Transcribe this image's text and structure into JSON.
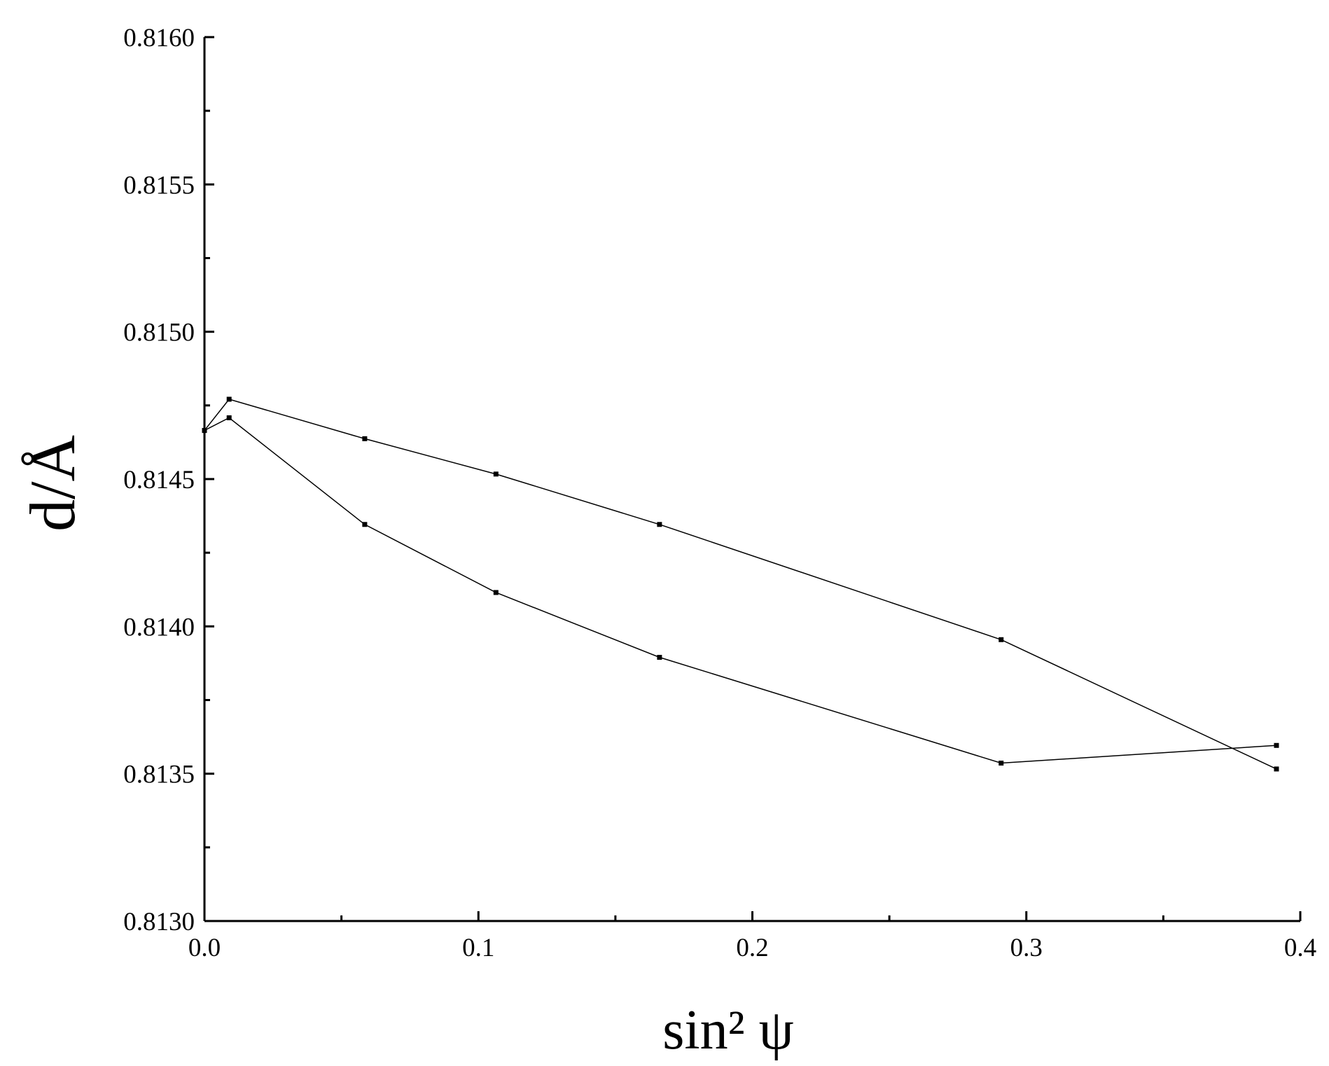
{
  "chart_data": {
    "type": "line",
    "x_label": "sin² ψ",
    "y_label": "d/Å",
    "series": [
      {
        "color": "#000000",
        "x": [
          0,
          0.009,
          0.0585,
          0.1064,
          0.1661,
          0.2908,
          0.3913
        ],
        "values": [
          0.814665,
          0.814771,
          0.814637,
          0.814517,
          0.814346,
          0.813955,
          0.813516
        ]
      },
      {
        "color": "#000000",
        "x": [
          0,
          0.009,
          0.0585,
          0.1064,
          0.1661,
          0.2908,
          0.3913
        ],
        "values": [
          0.814665,
          0.814708,
          0.814346,
          0.814115,
          0.813895,
          0.813536,
          0.813596
        ]
      }
    ],
    "xlim": [
      0,
      0.4
    ],
    "xticks": [
      {
        "value": 0,
        "label": "0.0"
      },
      0.1,
      0.2,
      0.3,
      0.4
    ],
    "xminorticks": [
      0.05,
      0.15,
      0.25,
      0.35
    ],
    "ylim": [
      0.813,
      0.816
    ],
    "yticks": [
      {
        "value": 0.813,
        "label": "0.8130"
      },
      {
        "value": 0.8135,
        "label": "0.8135"
      },
      {
        "value": 0.814,
        "label": "0.8140"
      },
      {
        "value": 0.8145,
        "label": "0.8145"
      },
      {
        "value": 0.815,
        "label": "0.8150"
      },
      {
        "value": 0.8155,
        "label": "0.8155"
      },
      {
        "value": 0.816,
        "label": "0.8160"
      }
    ],
    "yminorticks": [
      0.81325,
      0.81375,
      0.81425,
      0.81475,
      0.81525,
      0.81575
    ],
    "grid": false
  }
}
